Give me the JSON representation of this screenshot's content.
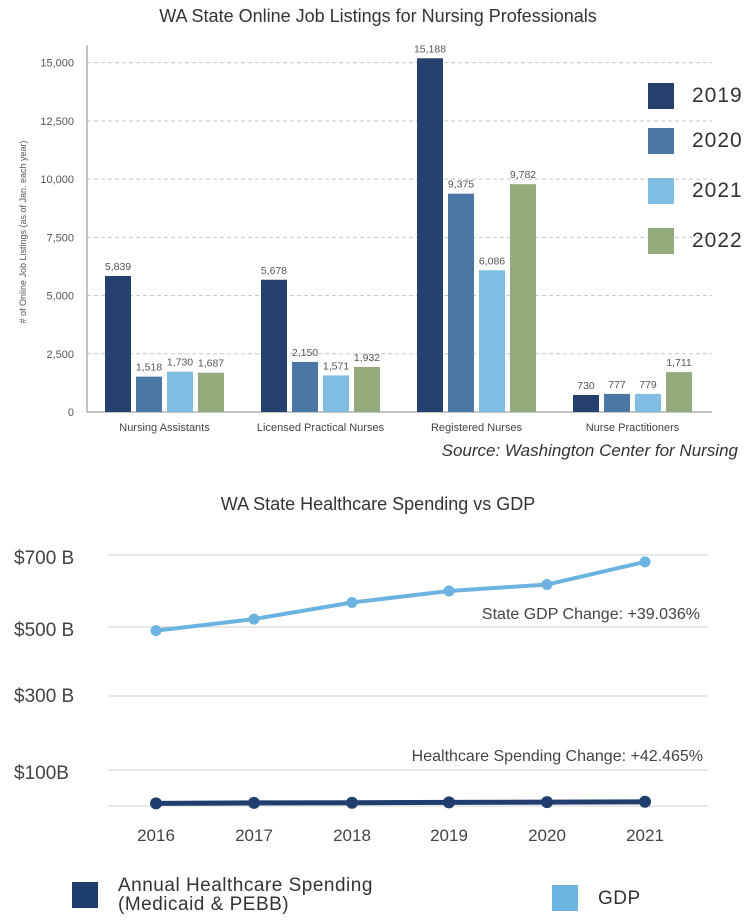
{
  "chart_data": [
    {
      "type": "bar",
      "title": "WA State Online Job Listings for Nursing Professionals",
      "ylabel": "# of Online Job Listings (as of Jan. each year)",
      "xlabel": "",
      "ylim": [
        0,
        15500
      ],
      "yticks": [
        "0",
        "2,500",
        "5,000",
        "7,500",
        "10,000",
        "12,500",
        "15,000"
      ],
      "ytick_values": [
        0,
        2500,
        5000,
        7500,
        10000,
        12500,
        15000
      ],
      "categories": [
        "Nursing Assistants",
        "Licensed Practical Nurses",
        "Registered Nurses",
        "Nurse Practitioners"
      ],
      "series": [
        {
          "name": "2019",
          "color": "#25416e",
          "values": [
            5839,
            5678,
            15188,
            730
          ],
          "labels": [
            "5,839",
            "5,678",
            "15,188",
            "730"
          ]
        },
        {
          "name": "2020",
          "color": "#4b77a4",
          "values": [
            1518,
            2150,
            9375,
            777
          ],
          "labels": [
            "1,518",
            "2,150",
            "9,375",
            "777"
          ]
        },
        {
          "name": "2021",
          "color": "#7fbde3",
          "values": [
            1730,
            1571,
            6086,
            779
          ],
          "labels": [
            "1,730",
            "1,571",
            "6,086",
            "779"
          ]
        },
        {
          "name": "2022",
          "color": "#93aa7c",
          "values": [
            1687,
            1932,
            9782,
            1711
          ],
          "labels": [
            "1,687",
            "1,932",
            "9,782",
            "1,711"
          ]
        }
      ],
      "grid": true,
      "legend": "right",
      "source": "Source: Washington Center for Nursing"
    },
    {
      "type": "line",
      "title": "WA State Healthcare Spending vs GDP",
      "xlabel": "",
      "ylabel": "",
      "x": [
        "2016",
        "2017",
        "2018",
        "2019",
        "2020",
        "2021"
      ],
      "yticks": [
        "$700 B",
        "$500 B",
        "$300 B",
        "$100B"
      ],
      "ytick_values": [
        700,
        500,
        300,
        100
      ],
      "ylim": [
        10,
        700
      ],
      "series": [
        {
          "name": "GDP",
          "color": "#6cb4df",
          "values": [
            490,
            522,
            568,
            600,
            618,
            681
          ]
        },
        {
          "name": "Annual Healthcare Spending (Medicaid & PEBB)",
          "color": "#1f3e6d",
          "values": [
            10.2,
            11.3,
            11.9,
            12.7,
            13.5,
            14.5
          ]
        }
      ],
      "annotations": [
        "State GDP Change: +39.036%",
        "Healthcare Spending Change: +42.465%"
      ],
      "grid": true,
      "legend": "bottom",
      "legend_labels": {
        "spending_line1": "Annual Healthcare Spending",
        "spending_line2": "(Medicaid & PEBB)",
        "gdp": "GDP"
      }
    }
  ]
}
